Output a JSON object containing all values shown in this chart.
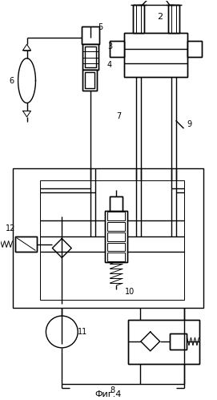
{
  "fig_label": "Фиг.4",
  "background": "#ffffff",
  "line_color": "#000000",
  "lw": 1.0,
  "tlw": 0.7,
  "figsize": [
    2.71,
    4.99
  ],
  "dpi": 100
}
